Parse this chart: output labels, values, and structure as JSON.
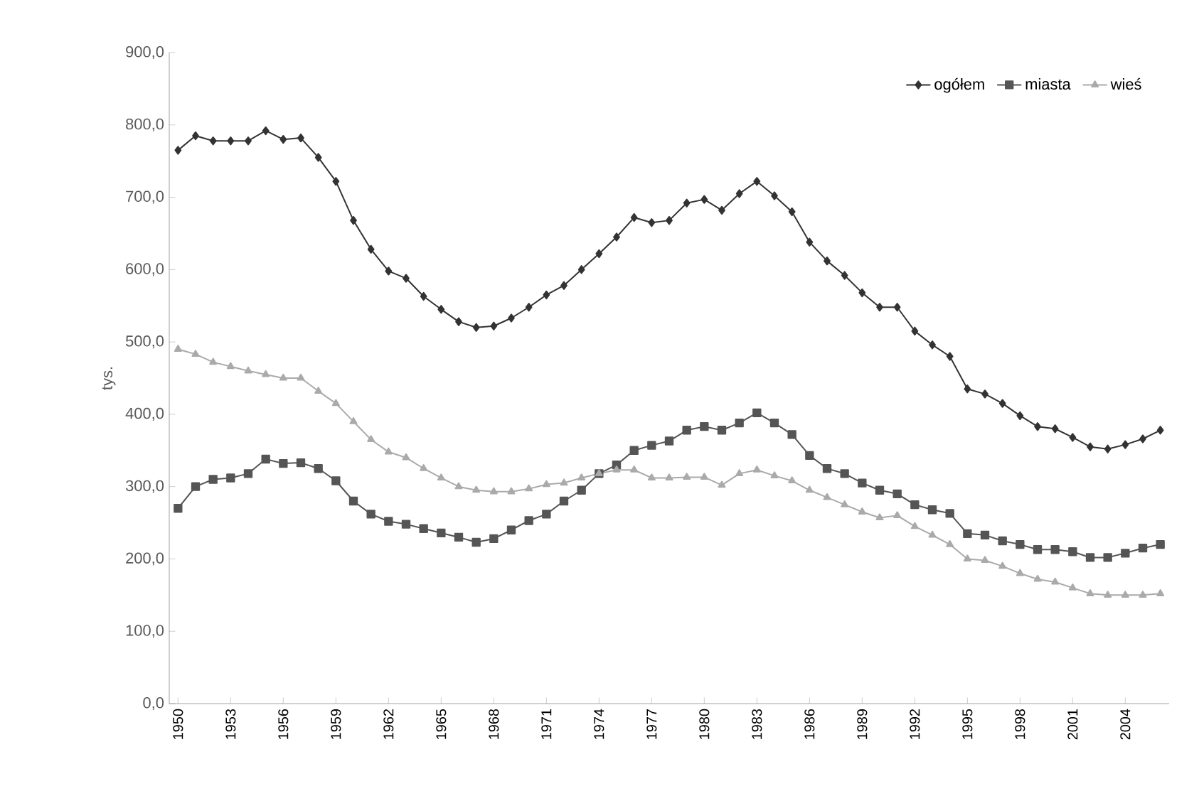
{
  "chart_data": {
    "type": "line",
    "ylabel": "tys.",
    "categories": [
      "1950",
      null,
      null,
      "1953",
      null,
      null,
      "1956",
      null,
      null,
      "1959",
      null,
      null,
      "1962",
      null,
      null,
      "1965",
      null,
      null,
      "1968",
      null,
      null,
      "1971",
      null,
      null,
      "1974",
      null,
      null,
      "1977",
      null,
      null,
      "1980",
      null,
      null,
      "1983",
      null,
      null,
      "1986",
      null,
      null,
      "1989",
      null,
      null,
      "1992",
      null,
      null,
      "1995",
      null,
      null,
      "1998",
      null,
      null,
      "2001",
      null,
      null,
      "2004",
      null,
      null
    ],
    "series": [
      {
        "name": "ogółem",
        "color": "#333333",
        "marker": "diamond",
        "values": [
          765,
          785,
          778,
          778,
          778,
          792,
          780,
          782,
          755,
          722,
          668,
          628,
          598,
          588,
          563,
          545,
          528,
          520,
          522,
          533,
          548,
          565,
          578,
          600,
          622,
          645,
          672,
          665,
          668,
          692,
          697,
          682,
          705,
          722,
          702,
          680,
          638,
          612,
          592,
          568,
          548,
          548,
          515,
          496,
          480,
          435,
          428,
          415,
          398,
          383,
          380,
          368,
          355,
          352,
          358,
          366,
          378
        ]
      },
      {
        "name": "miasta",
        "color": "#555555",
        "marker": "square",
        "values": [
          270,
          300,
          310,
          312,
          318,
          338,
          332,
          333,
          325,
          308,
          280,
          262,
          252,
          248,
          242,
          236,
          230,
          223,
          228,
          240,
          253,
          262,
          280,
          295,
          318,
          330,
          350,
          357,
          363,
          378,
          383,
          378,
          388,
          402,
          388,
          372,
          343,
          325,
          318,
          305,
          295,
          290,
          275,
          268,
          263,
          235,
          233,
          225,
          220,
          213,
          213,
          210,
          202,
          202,
          208,
          215,
          220
        ]
      },
      {
        "name": "wieś",
        "color": "#aaaaaa",
        "marker": "triangle",
        "values": [
          490,
          483,
          472,
          466,
          460,
          455,
          450,
          450,
          432,
          415,
          390,
          365,
          348,
          340,
          325,
          312,
          300,
          295,
          293,
          293,
          297,
          303,
          305,
          312,
          318,
          323,
          323,
          312,
          312,
          313,
          313,
          302,
          318,
          323,
          315,
          308,
          295,
          285,
          275,
          265,
          257,
          260,
          245,
          233,
          220,
          200,
          198,
          190,
          180,
          172,
          168,
          160,
          152,
          150,
          150,
          150,
          152
        ]
      }
    ],
    "ylim": [
      0,
      900
    ],
    "yticks": [
      {
        "value": 0,
        "label": "0,0"
      },
      {
        "value": 100,
        "label": "100,0"
      },
      {
        "value": 200,
        "label": "200,0"
      },
      {
        "value": 300,
        "label": "300,0"
      },
      {
        "value": 400,
        "label": "400,0"
      },
      {
        "value": 500,
        "label": "500,0"
      },
      {
        "value": 600,
        "label": "600,0"
      },
      {
        "value": 700,
        "label": "700,0"
      },
      {
        "value": 800,
        "label": "800,0"
      },
      {
        "value": 900,
        "label": "900,0"
      }
    ],
    "grid": false,
    "legend": "top right"
  }
}
